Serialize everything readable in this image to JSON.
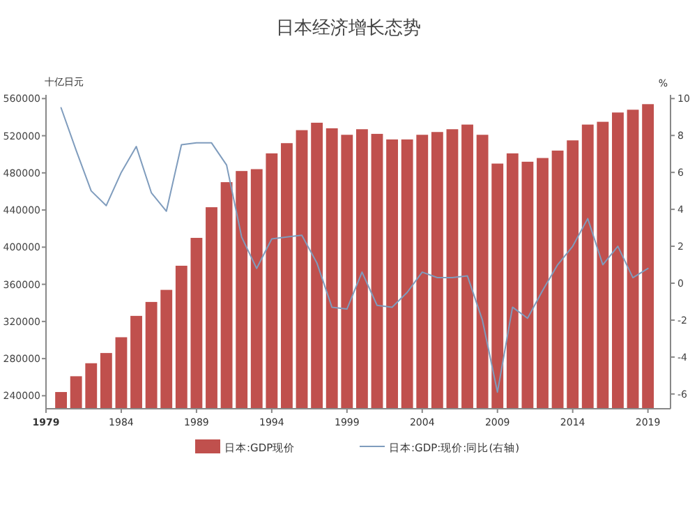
{
  "chart_data": {
    "type": "bar",
    "title": "日本经济增长态势",
    "ylabel": "十亿日元",
    "y2label": "%",
    "legend": "bottom",
    "x": [
      1980,
      1981,
      1982,
      1983,
      1984,
      1985,
      1986,
      1987,
      1988,
      1989,
      1990,
      1991,
      1992,
      1993,
      1994,
      1995,
      1996,
      1997,
      1998,
      1999,
      2000,
      2001,
      2002,
      2003,
      2004,
      2005,
      2006,
      2007,
      2008,
      2009,
      2010,
      2011,
      2012,
      2013,
      2014,
      2015,
      2016,
      2017,
      2018,
      2019
    ],
    "xlim": [
      1979,
      2020.5
    ],
    "xticks": [
      1979,
      1984,
      1989,
      1994,
      1999,
      2004,
      2009,
      2014,
      2019
    ],
    "ylim": [
      226000,
      564000
    ],
    "yticks": [
      240000,
      280000,
      320000,
      360000,
      400000,
      440000,
      480000,
      520000,
      560000
    ],
    "y2lim": [
      -6.8,
      10.2
    ],
    "y2ticks": [
      -6,
      -4,
      -2,
      0,
      2,
      4,
      6,
      8,
      10
    ],
    "series": [
      {
        "name": "日本:GDP现价",
        "color": "#c0504d",
        "values": [
          244000,
          261000,
          275000,
          286000,
          303000,
          326000,
          341000,
          354000,
          380000,
          410000,
          443000,
          470000,
          482000,
          484000,
          501000,
          512000,
          526000,
          534000,
          528000,
          521000,
          527000,
          522000,
          516000,
          516000,
          521000,
          524000,
          527000,
          532000,
          521000,
          490000,
          501000,
          492000,
          496000,
          504000,
          515000,
          532000,
          535000,
          545000,
          548000,
          554000
        ]
      },
      {
        "name": "日本:GDP:现价:同比(右轴)",
        "type": "line",
        "axis": "y2",
        "color": "#7f9cbd",
        "values": [
          9.5,
          7.2,
          5.0,
          4.2,
          6.0,
          7.4,
          4.9,
          3.9,
          7.5,
          7.6,
          7.6,
          6.4,
          2.5,
          0.8,
          2.4,
          2.5,
          2.6,
          1.1,
          -1.3,
          -1.4,
          0.6,
          -1.2,
          -1.3,
          -0.5,
          0.6,
          0.3,
          0.3,
          0.4,
          -2.0,
          -5.9,
          -1.3,
          -1.9,
          -0.4,
          1.0,
          2.0,
          3.5,
          1.0,
          2.0,
          0.3,
          0.8
        ]
      }
    ]
  }
}
